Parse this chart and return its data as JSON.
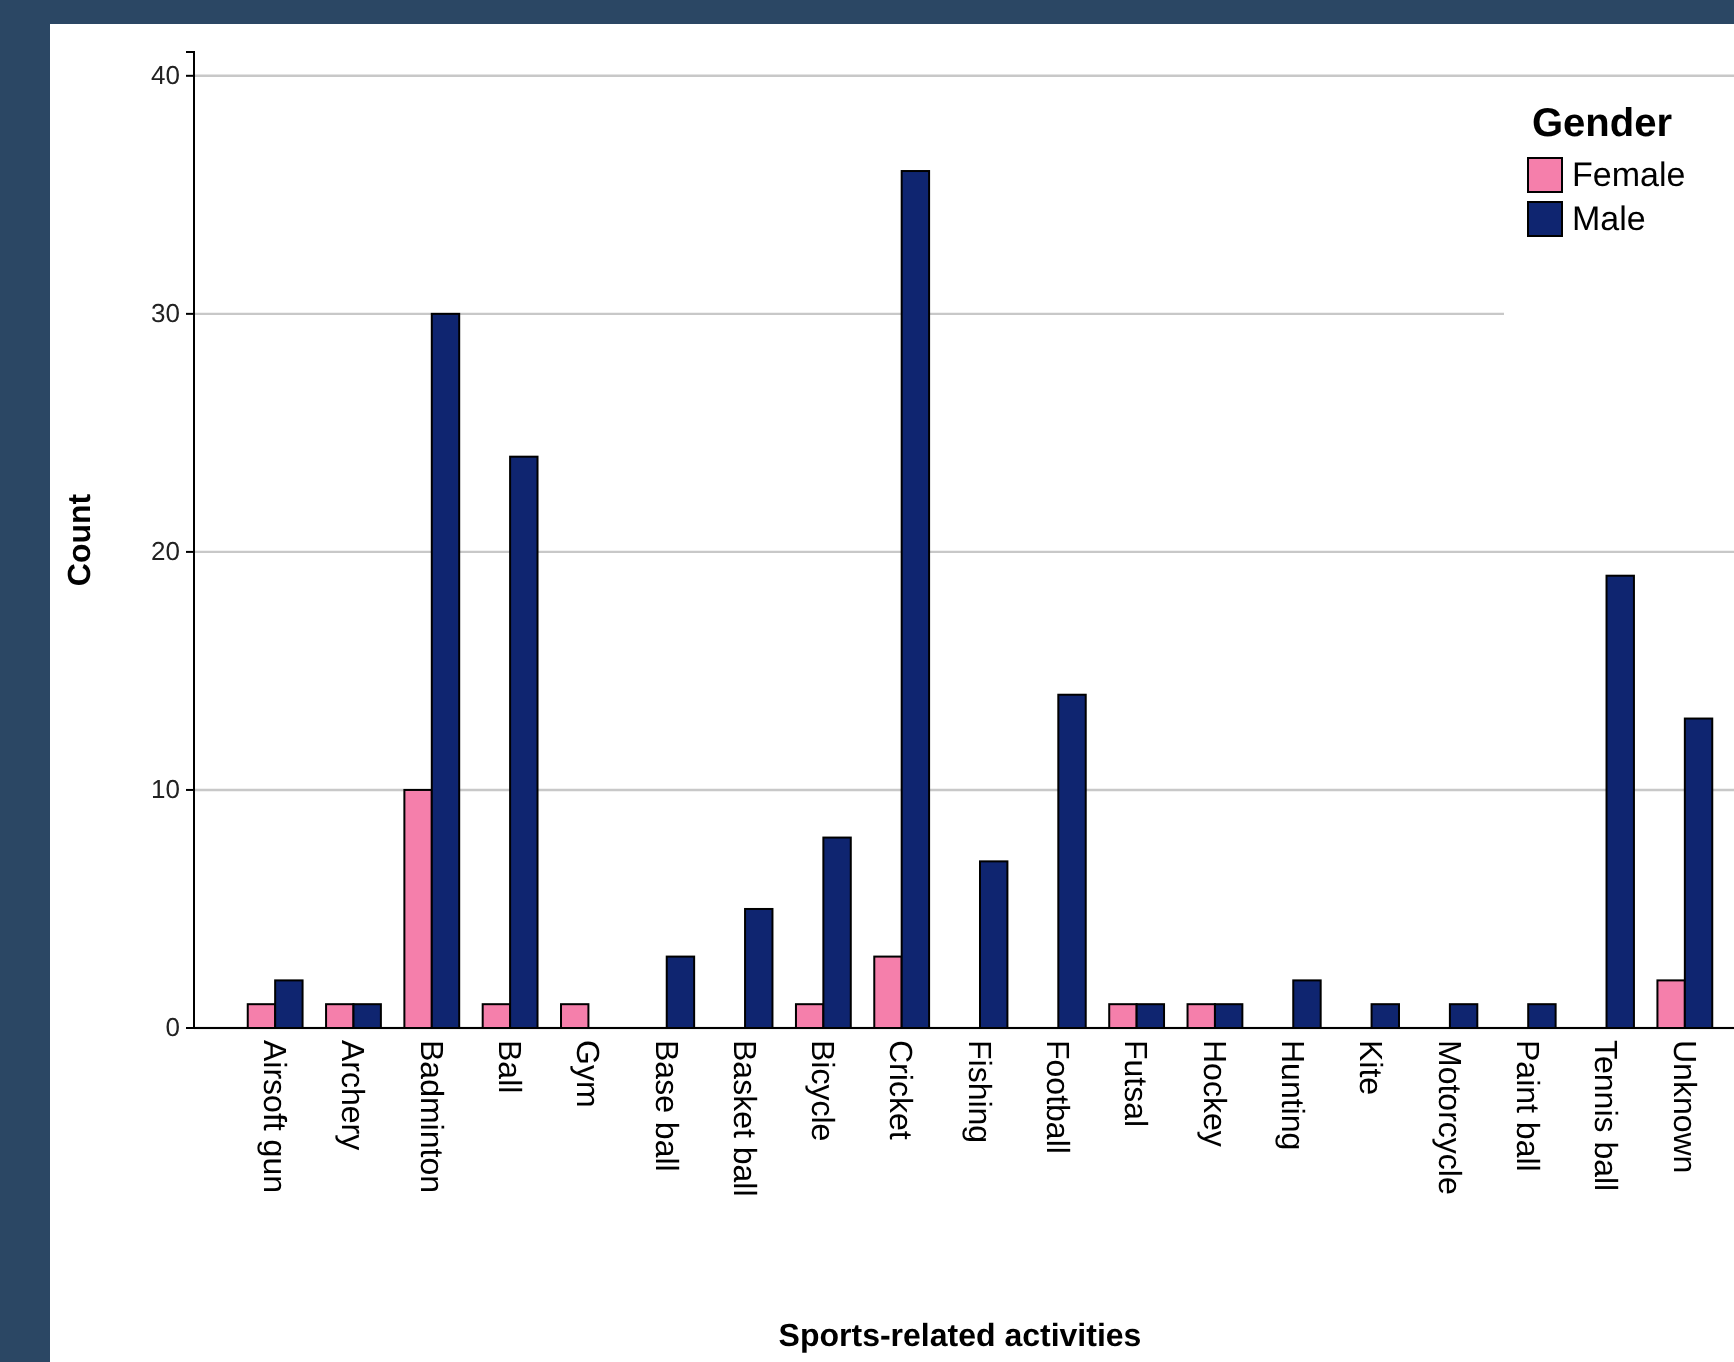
{
  "chart_data": {
    "type": "bar",
    "xlabel": "Sports-related activities",
    "ylabel": "Count",
    "legend_title": "Gender",
    "categories": [
      "Airsoft gun",
      "Archery",
      "Badminton",
      "Ball",
      "Gym",
      "Base ball",
      "Basket ball",
      "Bicycle",
      "Cricket",
      "Fishing",
      "Football",
      "Futsal",
      "Hockey",
      "Hunting",
      "Kite",
      "Motorcycle",
      "Paint ball",
      "Tennis ball",
      "Unknown"
    ],
    "series": [
      {
        "name": "Female",
        "color": "#f57fab",
        "values": [
          1,
          1,
          10,
          1,
          1,
          0,
          0,
          1,
          3,
          0,
          0,
          1,
          1,
          0,
          0,
          0,
          0,
          0,
          2
        ]
      },
      {
        "name": "Male",
        "color": "#0f2570",
        "values": [
          2,
          1,
          30,
          24,
          0,
          3,
          5,
          8,
          36,
          7,
          14,
          1,
          1,
          2,
          1,
          1,
          1,
          19,
          13
        ]
      }
    ],
    "ylim": [
      0,
      41
    ],
    "yticks": [
      0,
      10,
      20,
      30,
      40
    ],
    "grid": "y",
    "legend": "top right"
  }
}
